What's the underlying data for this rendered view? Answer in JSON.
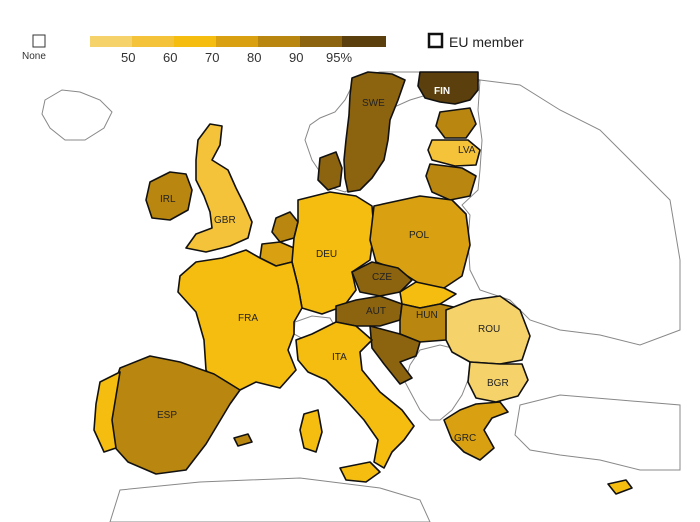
{
  "legend": {
    "none_label": "None",
    "ticks": [
      "50",
      "60",
      "70",
      "80",
      "90",
      "95%"
    ],
    "eu_label": "EU member",
    "colors": [
      "#f6d36a",
      "#f5c33a",
      "#f5bd10",
      "#d9a112",
      "#b9870f",
      "#8c6410",
      "#5b3f0c"
    ]
  },
  "countries": [
    {
      "code": "SWE",
      "name_label": "SWE"
    },
    {
      "code": "FIN",
      "name_label": "FIN"
    },
    {
      "code": "LVA",
      "name_label": "LVA"
    },
    {
      "code": "IRL",
      "name_label": "IRL"
    },
    {
      "code": "GBR",
      "name_label": "GBR"
    },
    {
      "code": "POL",
      "name_label": "POL"
    },
    {
      "code": "DEU",
      "name_label": "DEU"
    },
    {
      "code": "CZE",
      "name_label": "CZE"
    },
    {
      "code": "FRA",
      "name_label": "FRA"
    },
    {
      "code": "AUT",
      "name_label": "AUT"
    },
    {
      "code": "HUN",
      "name_label": "HUN"
    },
    {
      "code": "ROU",
      "name_label": "ROU"
    },
    {
      "code": "ITA",
      "name_label": "ITA"
    },
    {
      "code": "BGR",
      "name_label": "BGR"
    },
    {
      "code": "ESP",
      "name_label": "ESP"
    },
    {
      "code": "GRC",
      "name_label": "GRC"
    }
  ]
}
